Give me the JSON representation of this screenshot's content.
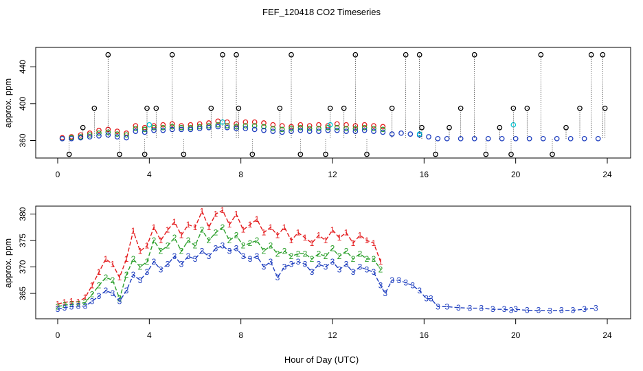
{
  "title": "FEF_120418  CO2 Timeseries",
  "xlabel": "Hour of Day (UTC)",
  "chart_data": [
    {
      "type": "scatter",
      "panel": "top",
      "ylabel": "approx. ppm",
      "xlim": [
        0,
        24
      ],
      "ylim": [
        341,
        461
      ],
      "xticks": [
        "0",
        "4",
        "8",
        "12",
        "16",
        "20",
        "24"
      ],
      "yticks": [
        "360",
        "400",
        "440"
      ],
      "series": [
        {
          "name": "red",
          "color": "#e41a1c",
          "x": [
            0.2,
            0.6,
            1.0,
            1.4,
            1.8,
            2.2,
            2.6,
            3.0,
            3.4,
            3.8,
            4.2,
            4.6,
            5.0,
            5.4,
            5.8,
            6.2,
            6.6,
            7.0,
            7.4,
            7.8,
            8.2,
            8.6,
            9.0,
            9.4,
            9.8,
            10.2,
            10.6,
            11.0,
            11.4,
            11.8,
            12.2,
            12.6,
            13.0,
            13.4,
            13.8,
            14.2
          ],
          "y": [
            363,
            364,
            366,
            368,
            371,
            372,
            370,
            368,
            376,
            374,
            376,
            377,
            378,
            376,
            377,
            378,
            379,
            381,
            380,
            378,
            380,
            380,
            379,
            377,
            376,
            375,
            377,
            376,
            377,
            376,
            378,
            377,
            376,
            377,
            376,
            375
          ]
        },
        {
          "name": "green",
          "color": "#2ca02c",
          "x": [
            0.2,
            0.6,
            1.0,
            1.4,
            1.8,
            2.2,
            2.6,
            3.0,
            3.4,
            3.8,
            4.2,
            4.6,
            5.0,
            5.4,
            5.8,
            6.2,
            6.6,
            7.0,
            7.4,
            7.8,
            8.2,
            8.6,
            9.0,
            9.4,
            9.8,
            10.2,
            10.6,
            11.0,
            11.4,
            11.8,
            12.2,
            12.6,
            13.0,
            13.4,
            13.8,
            14.2
          ],
          "y": [
            362,
            363,
            364,
            366,
            368,
            369,
            367,
            366,
            373,
            372,
            374,
            374,
            375,
            374,
            374,
            375,
            376,
            377,
            376,
            375,
            376,
            376,
            375,
            373,
            372,
            373,
            374,
            373,
            373,
            374,
            374,
            373,
            373,
            374,
            373,
            372
          ]
        },
        {
          "name": "blue",
          "color": "#1f3fbf",
          "x": [
            0.2,
            0.6,
            1.0,
            1.4,
            1.8,
            2.2,
            2.6,
            3.0,
            3.4,
            3.8,
            4.2,
            4.6,
            5.0,
            5.4,
            5.8,
            6.2,
            6.6,
            7.0,
            7.4,
            7.8,
            8.2,
            8.6,
            9.0,
            9.4,
            9.8,
            10.2,
            10.6,
            11.0,
            11.4,
            11.8,
            12.2,
            12.6,
            13.0,
            13.4,
            13.8,
            14.2,
            14.6,
            15.0,
            15.4,
            15.8,
            16.2,
            16.6,
            17.0,
            17.6,
            18.2,
            18.8,
            19.4,
            20.0,
            20.6,
            21.2,
            21.8,
            22.4,
            23.0,
            23.6
          ],
          "y": [
            362,
            362,
            363,
            364,
            365,
            366,
            364,
            363,
            370,
            369,
            371,
            371,
            372,
            372,
            372,
            373,
            374,
            375,
            374,
            373,
            373,
            372,
            371,
            370,
            369,
            370,
            371,
            370,
            370,
            371,
            371,
            370,
            370,
            371,
            370,
            369,
            367,
            368,
            367,
            366,
            364,
            362,
            362,
            362,
            362,
            362,
            362,
            362,
            362,
            362,
            362,
            362,
            362,
            362
          ]
        },
        {
          "name": "cyan",
          "color": "#00c8d7",
          "x": [
            4.0,
            7.2,
            11.9,
            15.8,
            19.9
          ],
          "y": [
            377,
            380,
            377,
            367,
            377
          ]
        },
        {
          "name": "black",
          "color": "#000000",
          "x": [
            0.5,
            1.1,
            1.6,
            2.2,
            2.7,
            3.8,
            3.9,
            4.3,
            5.0,
            5.5,
            6.7,
            7.2,
            7.8,
            7.9,
            8.5,
            9.7,
            10.2,
            10.6,
            11.7,
            11.9,
            12.5,
            13.0,
            13.5,
            14.6,
            15.2,
            15.8,
            15.9,
            16.5,
            17.1,
            17.6,
            18.2,
            18.7,
            19.3,
            19.8,
            19.9,
            20.5,
            21.1,
            21.6,
            22.2,
            22.8,
            23.3,
            23.8,
            23.9
          ],
          "y": [
            345,
            374,
            395,
            453,
            345,
            345,
            395,
            395,
            453,
            345,
            395,
            453,
            453,
            395,
            345,
            395,
            453,
            345,
            345,
            395,
            395,
            453,
            345,
            395,
            453,
            453,
            374,
            345,
            374,
            395,
            453,
            345,
            374,
            345,
            395,
            395,
            453,
            345,
            374,
            395,
            453,
            453,
            395
          ]
        }
      ]
    },
    {
      "type": "line",
      "panel": "bottom",
      "ylabel": "approx. ppm",
      "xlim": [
        0,
        24
      ],
      "ylim": [
        360.2,
        381.5
      ],
      "xticks": [
        "0",
        "4",
        "8",
        "12",
        "16",
        "20",
        "24"
      ],
      "yticks": [
        "365",
        "370",
        "375",
        "380"
      ],
      "marker_note": "series plotted with digit markers 1, 2, 3",
      "series": [
        {
          "name": "1",
          "marker": "1",
          "color": "#e41a1c",
          "x": [
            0.0,
            0.3,
            0.6,
            0.9,
            1.2,
            1.5,
            1.8,
            2.1,
            2.4,
            2.7,
            3.0,
            3.3,
            3.6,
            3.9,
            4.2,
            4.5,
            4.8,
            5.1,
            5.4,
            5.7,
            6.0,
            6.3,
            6.6,
            6.9,
            7.2,
            7.5,
            7.8,
            8.1,
            8.4,
            8.7,
            9.0,
            9.3,
            9.6,
            9.9,
            10.2,
            10.5,
            10.8,
            11.1,
            11.4,
            11.7,
            12.0,
            12.3,
            12.6,
            12.9,
            13.2,
            13.5,
            13.8,
            14.1
          ],
          "y": [
            363.0,
            363.3,
            363.5,
            363.4,
            364.2,
            366.5,
            369.0,
            371.5,
            370.5,
            368.0,
            371.5,
            376.8,
            373.0,
            374.0,
            377.5,
            375.0,
            377.0,
            378.5,
            376.0,
            378.0,
            377.5,
            380.5,
            377.5,
            380.0,
            380.7,
            378.0,
            380.0,
            377.0,
            378.0,
            379.0,
            376.5,
            377.5,
            376.0,
            377.5,
            375.0,
            376.5,
            375.5,
            374.5,
            376.0,
            375.0,
            377.0,
            375.5,
            376.5,
            374.5,
            376.0,
            375.0,
            374.5,
            371.0
          ]
        },
        {
          "name": "2",
          "marker": "2",
          "color": "#2ca02c",
          "x": [
            0.0,
            0.3,
            0.6,
            0.9,
            1.2,
            1.5,
            1.8,
            2.1,
            2.4,
            2.7,
            3.0,
            3.3,
            3.6,
            3.9,
            4.2,
            4.5,
            4.8,
            5.1,
            5.4,
            5.7,
            6.0,
            6.3,
            6.6,
            6.9,
            7.2,
            7.5,
            7.8,
            8.1,
            8.4,
            8.7,
            9.0,
            9.3,
            9.6,
            9.9,
            10.2,
            10.5,
            10.8,
            11.1,
            11.4,
            11.7,
            12.0,
            12.3,
            12.6,
            12.9,
            13.2,
            13.5,
            13.8,
            14.1
          ],
          "y": [
            362.5,
            362.8,
            362.9,
            363.0,
            363.3,
            364.8,
            366.5,
            368.0,
            367.5,
            364.0,
            368.5,
            371.5,
            370.0,
            371.0,
            375.0,
            373.0,
            374.0,
            375.5,
            373.0,
            375.0,
            374.0,
            377.0,
            375.0,
            376.5,
            377.5,
            375.0,
            376.0,
            374.0,
            374.5,
            375.0,
            373.0,
            374.0,
            372.5,
            373.0,
            372.0,
            372.5,
            372.5,
            371.5,
            372.5,
            372.0,
            373.5,
            372.0,
            373.0,
            371.5,
            372.5,
            371.5,
            371.5,
            369.5
          ]
        },
        {
          "name": "3",
          "marker": "3",
          "color": "#1f3fbf",
          "x": [
            0.0,
            0.3,
            0.6,
            0.9,
            1.2,
            1.5,
            1.8,
            2.1,
            2.4,
            2.7,
            3.0,
            3.3,
            3.6,
            3.9,
            4.2,
            4.5,
            4.8,
            5.1,
            5.4,
            5.7,
            6.0,
            6.3,
            6.6,
            6.9,
            7.2,
            7.5,
            7.8,
            8.1,
            8.4,
            8.7,
            9.0,
            9.3,
            9.6,
            9.9,
            10.2,
            10.5,
            10.8,
            11.1,
            11.4,
            11.7,
            12.0,
            12.3,
            12.6,
            12.9,
            13.2,
            13.5,
            13.8,
            14.1,
            14.3,
            14.6,
            14.9,
            15.2,
            15.5,
            15.8,
            16.1,
            16.3,
            16.6,
            17.0,
            17.5,
            18.0,
            18.5,
            19.0,
            19.5,
            19.8,
            20.0,
            20.5,
            21.0,
            21.5,
            22.0,
            22.5,
            23.0,
            23.5
          ],
          "y": [
            362.0,
            362.3,
            362.5,
            362.6,
            362.6,
            363.5,
            364.5,
            365.5,
            365.0,
            363.5,
            365.5,
            368.5,
            367.5,
            369.0,
            371.0,
            369.5,
            370.5,
            372.0,
            370.5,
            372.0,
            371.5,
            373.0,
            372.0,
            373.5,
            374.0,
            373.0,
            373.5,
            372.0,
            371.5,
            372.0,
            370.0,
            371.0,
            368.0,
            370.0,
            370.5,
            371.0,
            370.5,
            369.0,
            370.5,
            370.0,
            371.0,
            369.5,
            370.5,
            369.0,
            370.0,
            369.5,
            369.0,
            366.5,
            365.0,
            367.5,
            367.5,
            367.0,
            366.5,
            365.5,
            364.0,
            364.0,
            362.5,
            362.5,
            362.3,
            362.2,
            362.2,
            362.0,
            362.0,
            361.8,
            362.0,
            361.8,
            361.8,
            361.7,
            361.8,
            361.8,
            362.0,
            362.2
          ]
        }
      ]
    }
  ]
}
